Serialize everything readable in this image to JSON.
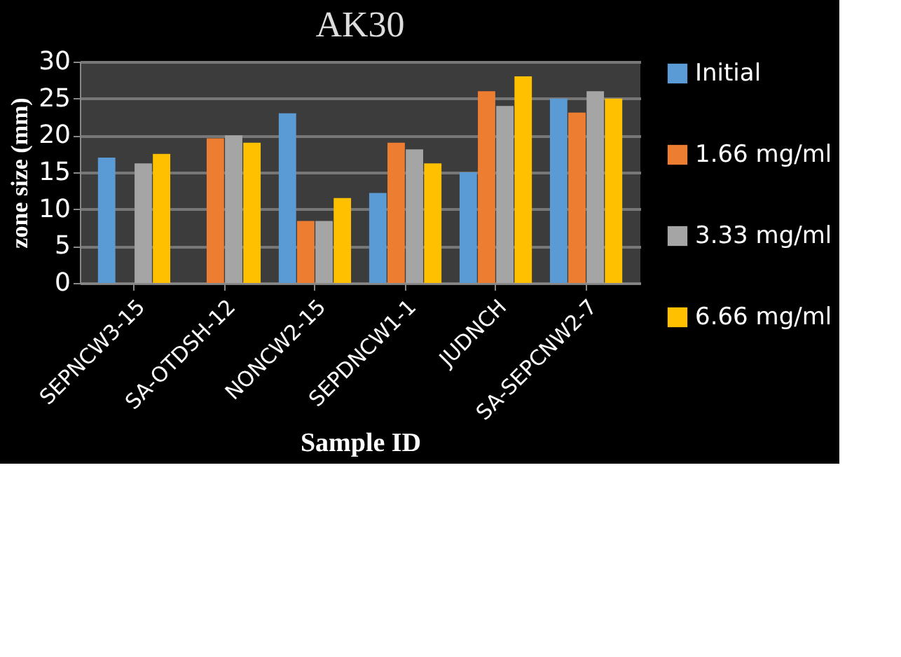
{
  "chart_data": {
    "type": "bar",
    "title": "AK30",
    "xlabel": "Sample ID",
    "ylabel": "zone size (mm)",
    "categories": [
      "SEPNCW3-15",
      "SA-OTDSH-12",
      "NONCW2-15",
      "SEPDNCW1-1",
      "JUDNCH",
      "SA-SEPCNW2-7"
    ],
    "series": [
      {
        "name": "Initial",
        "color": "#5b9bd5",
        "values": [
          17,
          0,
          23,
          12.2,
          15,
          25
        ]
      },
      {
        "name": "1.66 mg/ml",
        "color": "#ed7d31",
        "values": [
          0,
          19.6,
          8.4,
          19,
          26,
          23.1
        ]
      },
      {
        "name": "3.33 mg/ml",
        "color": "#a5a5a5",
        "values": [
          16.2,
          20,
          8.4,
          18.1,
          24,
          26
        ]
      },
      {
        "name": "6.66 mg/ml",
        "color": "#ffc000",
        "values": [
          17.5,
          19,
          11.5,
          16.2,
          28,
          25
        ]
      }
    ],
    "ylim": [
      0,
      30
    ],
    "yticks": [
      0,
      5,
      10,
      15,
      20,
      25,
      30
    ],
    "grid": "y",
    "legend": "right"
  }
}
